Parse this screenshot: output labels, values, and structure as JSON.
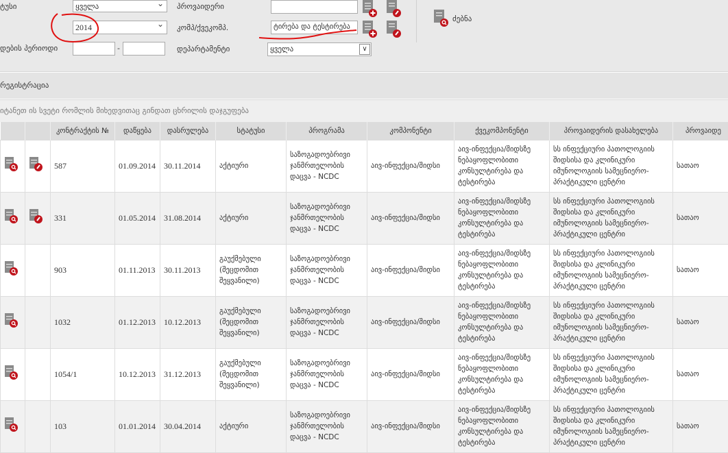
{
  "filters": {
    "status_label": "ტუსი",
    "status_value": "ყველა",
    "year_label": "",
    "year_value": "2014",
    "period_label": "დების პერიოდი",
    "period_from": "",
    "period_sep": "-",
    "period_to": "",
    "provider_label": "პროვაიდერი",
    "provider_value": "",
    "comp_label": "კომპ/ქვეკომპ.",
    "comp_value": "ტირება და ტესტირება",
    "department_label": "დეპარტამენტი",
    "department_value": "ყველა",
    "search_label": "ძებნა"
  },
  "registration_label": "რეგისტრაცია",
  "group_hint": "იტანეთ ის სვეტი რომლის მიხედვითაც გინდათ ცხრილის დაჯგუფება",
  "table": {
    "headers": [
      "",
      "",
      "კონტრაქტის №",
      "დაწყება",
      "დასრულება",
      "სტატუსი",
      "პროგრამა",
      "კომპონენტი",
      "ქვეკომპონენტი",
      "პროვაიდერის დასახელება",
      "პროვაიდე"
    ],
    "rows": [
      {
        "edit": true,
        "contract": "587",
        "start": "01.09.2014",
        "end": "30.11.2014",
        "status": "აქტიური",
        "program": "საზოგადოებრივი ჯანმრთელობის დაცვა - NCDC",
        "component": "აივ-ინფექცია/შიდსი",
        "subcomponent": "აივ-ინფექცია/შიდსზე ნებაყოფლობითი კონსულტირება და ტესტირება",
        "provider": "სს ინფექციური პათოლოგიის შიდსისა და კლინიკური იმუნოლოგიის სამეცნიერო-პრაქტიკული ცენტრი",
        "provider2": "სათაო"
      },
      {
        "edit": true,
        "contract": "331",
        "start": "01.05.2014",
        "end": "31.08.2014",
        "status": "აქტიური",
        "program": "საზოგადოებრივი ჯანმრთელობის დაცვა - NCDC",
        "component": "აივ-ინფექცია/შიდსი",
        "subcomponent": "აივ-ინფექცია/შიდსზე ნებაყოფლობითი კონსულტირება და ტესტირება",
        "provider": "სს ინფექციური პათოლოგიის შიდსისა და კლინიკური იმუნოლოგიის სამეცნიერო-პრაქტიკული ცენტრი",
        "provider2": "სათაო"
      },
      {
        "edit": false,
        "contract": "903",
        "start": "01.11.2013",
        "end": "30.11.2013",
        "status": "გაუქმებული (შეცდომით შეყვანილი)",
        "program": "საზოგადოებრივი ჯანმრთელობის დაცვა - NCDC",
        "component": "აივ-ინფექცია/შიდსი",
        "subcomponent": "აივ-ინფექცია/შიდსზე ნებაყოფლობითი კონსულტირება და ტესტირება",
        "provider": "სს ინფექციური პათოლოგიის შიდსისა და კლინიკური იმუნოლოგიის სამეცნიერო-პრაქტიკული ცენტრი",
        "provider2": "სათაო"
      },
      {
        "edit": false,
        "contract": "1032",
        "start": "01.12.2013",
        "end": "10.12.2013",
        "status": "გაუქმებული (შეცდომით შეყვანილი)",
        "program": "საზოგადოებრივი ჯანმრთელობის დაცვა - NCDC",
        "component": "აივ-ინფექცია/შიდსი",
        "subcomponent": "აივ-ინფექცია/შიდსზე ნებაყოფლობითი კონსულტირება და ტესტირება",
        "provider": "სს ინფექციური პათოლოგიის შიდსისა და კლინიკური იმუნოლოგიის სამეცნიერო-პრაქტიკული ცენტრი",
        "provider2": "სათაო"
      },
      {
        "edit": false,
        "contract": "1054/1",
        "start": "10.12.2013",
        "end": "31.12.2013",
        "status": "გაუქმებული (შეცდომით შეყვანილი)",
        "program": "საზოგადოებრივი ჯანმრთელობის დაცვა - NCDC",
        "component": "აივ-ინფექცია/შიდსი",
        "subcomponent": "აივ-ინფექცია/შიდსზე ნებაყოფლობითი კონსულტირება და ტესტირება",
        "provider": "სს ინფექციური პათოლოგიის შიდსისა და კლინიკური იმუნოლოგიის სამეცნიერო-პრაქტიკული ცენტრი",
        "provider2": "სათაო"
      },
      {
        "edit": false,
        "contract": "103",
        "start": "01.01.2014",
        "end": "30.04.2014",
        "status": "აქტიური",
        "program": "საზოგადოებრივი ჯანმრთელობის დაცვა - NCDC",
        "component": "აივ-ინფექცია/შიდსი",
        "subcomponent": "აივ-ინფექცია/შიდსზე ნებაყოფლობითი კონსულტირება და ტესტირება",
        "provider": "სს ინფექციური პათოლოგიის შიდსისა და კლინიკური იმუნოლოგიის სამეცნიერო-პრაქტიკული ცენტრი",
        "provider2": "სათაო"
      }
    ]
  },
  "colors": {
    "annotation": "#e01010",
    "icon_red": "#c0141c",
    "icon_gray": "#8a8a8a"
  }
}
